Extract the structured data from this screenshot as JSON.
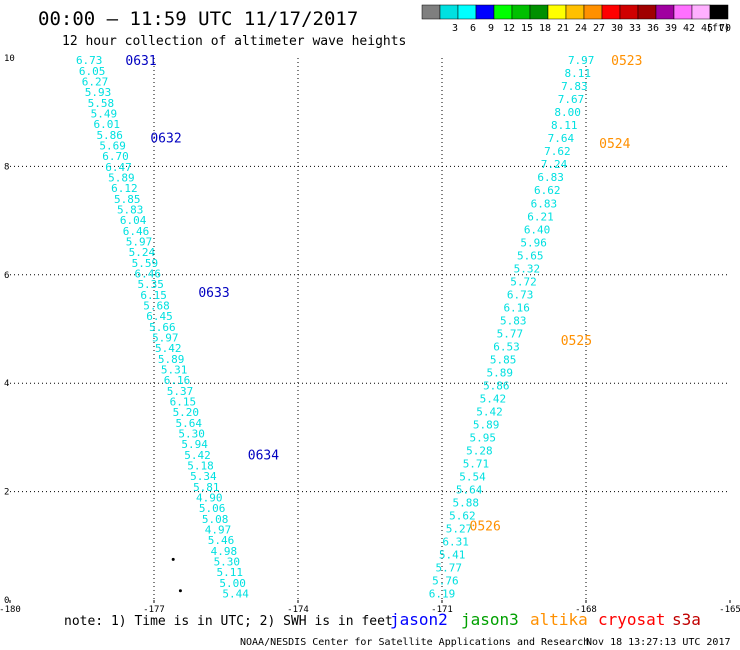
{
  "header": {
    "title": "00:00 – 11:59 UTC 11/17/2017",
    "subtitle": "12 hour collection of altimeter wave heights"
  },
  "scale": {
    "unit": "(ft)",
    "bins": [
      {
        "label": "",
        "color": "#7f7f7f"
      },
      {
        "label": "3",
        "color": "#00e0e0"
      },
      {
        "label": "6",
        "color": "#00ffff"
      },
      {
        "label": "9",
        "color": "#0000ff"
      },
      {
        "label": "12",
        "color": "#00ff00"
      },
      {
        "label": "15",
        "color": "#00c000"
      },
      {
        "label": "18",
        "color": "#009000"
      },
      {
        "label": "21",
        "color": "#ffff00"
      },
      {
        "label": "24",
        "color": "#ffc000"
      },
      {
        "label": "27",
        "color": "#ff9000"
      },
      {
        "label": "30",
        "color": "#ff0000"
      },
      {
        "label": "33",
        "color": "#d00000"
      },
      {
        "label": "36",
        "color": "#a00000"
      },
      {
        "label": "39",
        "color": "#a000a0"
      },
      {
        "label": "42",
        "color": "#ff70ff"
      },
      {
        "label": "45",
        "color": "#ffb0ff"
      },
      {
        "label": "70",
        "color": "#000000"
      }
    ]
  },
  "chart_data": {
    "type": "scatter",
    "xlim": [
      -180,
      -165
    ],
    "ylim": [
      0,
      10
    ],
    "xticks": [
      -180,
      -177,
      -174,
      -171,
      -168,
      -165
    ],
    "xtick_labels": [
      "-180",
      "-177",
      "-174",
      "-171",
      "-168",
      "-165"
    ],
    "yticks": [
      0,
      2,
      4,
      6,
      8,
      10
    ],
    "ytick_labels": [
      "0",
      "2",
      "4",
      "6",
      "8",
      "10"
    ],
    "grid": true,
    "point_color": "#00e0e0",
    "tracks": [
      {
        "x_start": -178.35,
        "x_end": -175.3,
        "y_start": 9.96,
        "y_end": 0.12,
        "values": [
          "6.73",
          "6.05",
          "6.27",
          "5.93",
          "5.58",
          "5.49",
          "6.01",
          "5.86",
          "5.69",
          "6.70",
          "6.47",
          "5.89",
          "6.12",
          "5.85",
          "5.83",
          "6.04",
          "6.46",
          "5.97",
          "5.24",
          "5.59",
          "6.46",
          "5.35",
          "6.15",
          "5.68",
          "6.45",
          "5.66",
          "5.97",
          "5.42",
          "5.89",
          "5.31",
          "6.16",
          "5.37",
          "6.15",
          "5.20",
          "5.64",
          "5.30",
          "5.94",
          "5.42",
          "5.18",
          "5.34",
          "5.81",
          "4.90",
          "5.06",
          "5.08",
          "4.97",
          "5.46",
          "4.98",
          "5.30",
          "5.11",
          "5.00",
          "5.44"
        ]
      },
      {
        "x_start": -168.1,
        "x_end": -171.0,
        "y_start": 9.96,
        "y_end": 0.12,
        "values": [
          "7.97",
          "8.11",
          "7.83",
          "7.67",
          "8.00",
          "8.11",
          "7.64",
          "7.62",
          "7.24",
          "6.83",
          "6.62",
          "6.83",
          "6.21",
          "6.40",
          "5.96",
          "5.65",
          "5.32",
          "5.72",
          "6.73",
          "6.16",
          "5.83",
          "5.77",
          "6.53",
          "5.85",
          "5.89",
          "5.86",
          "5.42",
          "5.42",
          "5.89",
          "5.95",
          "5.28",
          "5.71",
          "5.54",
          "5.64",
          "5.88",
          "5.62",
          "5.27",
          "6.31",
          "5.41",
          "5.77",
          "5.76",
          "6.19"
        ]
      }
    ],
    "pass_labels": [
      {
        "text": "0631",
        "x": -177.27,
        "y": 9.96,
        "color": "#0000c0"
      },
      {
        "text": "0632",
        "x": -176.75,
        "y": 8.53,
        "color": "#0000c0"
      },
      {
        "text": "0633",
        "x": -175.75,
        "y": 5.68,
        "color": "#0000c0"
      },
      {
        "text": "0634",
        "x": -174.72,
        "y": 2.68,
        "color": "#0000c0"
      },
      {
        "text": "0523",
        "x": -167.15,
        "y": 9.96,
        "color": "#ff9000"
      },
      {
        "text": "0524",
        "x": -167.4,
        "y": 8.43,
        "color": "#ff9000"
      },
      {
        "text": "0525",
        "x": -168.2,
        "y": 4.8,
        "color": "#ff9000"
      },
      {
        "text": "0526",
        "x": -170.1,
        "y": 1.37,
        "color": "#ff9000"
      }
    ],
    "stray_points": [
      {
        "x": -176.6,
        "y": 0.75
      },
      {
        "x": -176.45,
        "y": 0.17
      }
    ]
  },
  "footer": {
    "note": "note: 1) Time is in UTC; 2) SWH is in feet",
    "legend": [
      {
        "name": "jason2",
        "color": "#0000ff"
      },
      {
        "name": "jason3",
        "color": "#00a000"
      },
      {
        "name": "altika",
        "color": "#ff9000"
      },
      {
        "name": "cryosat",
        "color": "#ff0000"
      },
      {
        "name": "s3a",
        "color": "#c00000"
      }
    ],
    "credit": "NOAA/NESDIS Center for Satellite Applications and Research",
    "timestamp": "Nov 18 13:27:13 UTC 2017"
  }
}
